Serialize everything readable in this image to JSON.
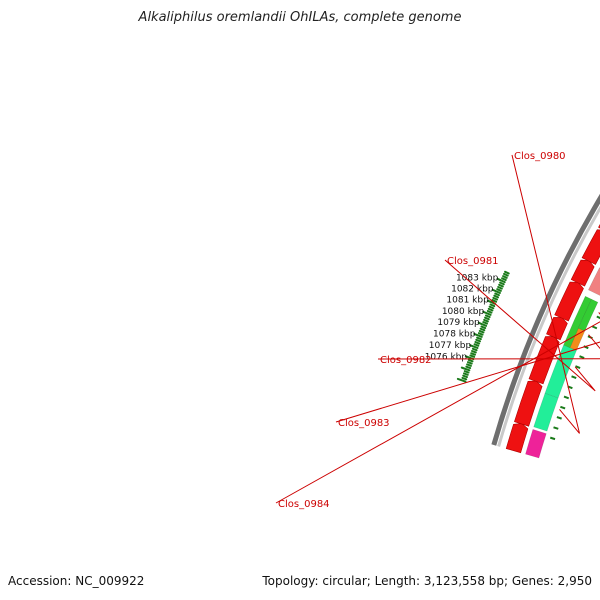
{
  "title": "Alkaliphilus oremlandii OhILAs, complete genome",
  "footer": {
    "accession": "Accession: NC_009922",
    "summary": "Topology: circular; Length: 3,123,558 bp; Genes: 2,950"
  },
  "colors": {
    "backbone": "#8a8a8a",
    "forward_cds": "#ee1111",
    "ruler": "#1a7a1a",
    "label": "#cc0000",
    "clos_0980": "#22ee99",
    "clos_0981": "#22ee99",
    "clos_0982": "#f28c1a",
    "clos_0983": "#33cc33",
    "clos_0984": "#f08080",
    "pink_gene": "#ee2299",
    "grey_gene": "#cccccc"
  },
  "ruler_labels": [
    "1076 kbp",
    "1077 kbp",
    "1078 kbp",
    "1079 kbp",
    "1080 kbp",
    "1081 kbp",
    "1082 kbp",
    "1083 kbp"
  ],
  "gene_labels": [
    "Clos_0980",
    "Clos_0981",
    "Clos_0982",
    "Clos_0983",
    "Clos_0984"
  ]
}
